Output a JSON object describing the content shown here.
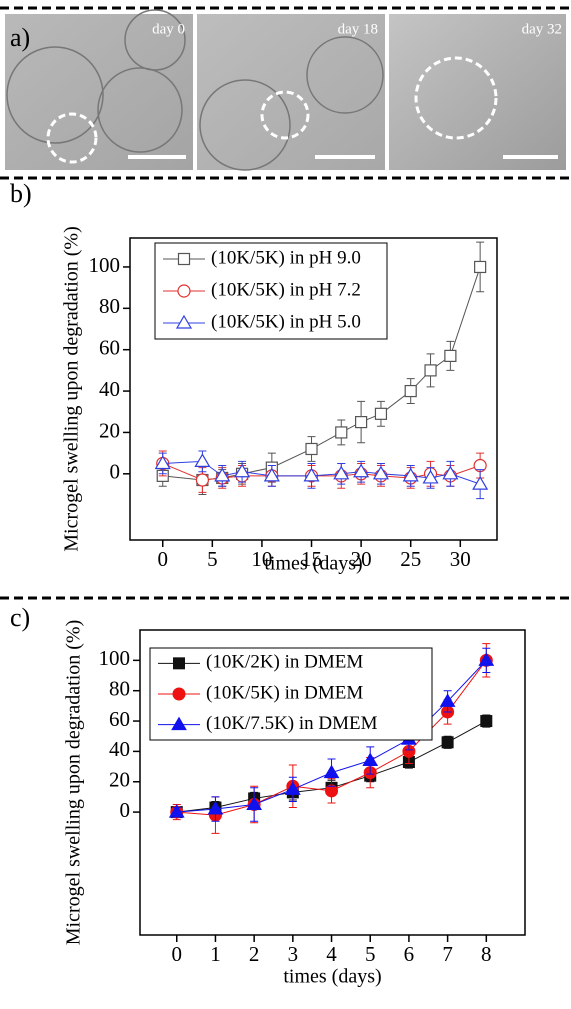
{
  "images": {
    "panel_label": "a)",
    "captions": [
      "day 0",
      "day 18",
      "day 32"
    ]
  },
  "chart_data": [
    {
      "type": "line",
      "panel_label": "b)",
      "x_label": "times (days)",
      "y_label": "Microgel swelling upon degradation (%)",
      "xlim": [
        -3.3,
        33.7
      ],
      "ylim": [
        -32,
        114
      ],
      "xticks": [
        0,
        5,
        10,
        15,
        20,
        25,
        30
      ],
      "yticks": [
        0,
        20,
        40,
        60,
        80,
        100
      ],
      "legend": "top-left",
      "series": [
        {
          "name": "(10K/5K) in pH 9.0",
          "color": "#555555",
          "marker": "open-square",
          "x": [
            0,
            4,
            6,
            8,
            11,
            15,
            18,
            20,
            22,
            25,
            27,
            29,
            32
          ],
          "values": [
            -1,
            -3,
            -2,
            0,
            3,
            12,
            20,
            25,
            29,
            40,
            50,
            57,
            100
          ],
          "errors": [
            5,
            7,
            4,
            5,
            7,
            6,
            6,
            10,
            6,
            6,
            8,
            7,
            12
          ]
        },
        {
          "name": "(10K/5K) in pH 7.2",
          "color": "#e03030",
          "marker": "open-circle",
          "x": [
            0,
            4,
            6,
            8,
            11,
            15,
            18,
            20,
            22,
            25,
            27,
            29,
            32
          ],
          "values": [
            5,
            -3,
            -2,
            -1,
            -1,
            -1,
            -1,
            0,
            -1,
            -2,
            0,
            -1,
            4
          ],
          "errors": [
            6,
            6,
            5,
            5,
            5,
            5,
            6,
            5,
            5,
            5,
            6,
            5,
            6
          ]
        },
        {
          "name": "(10K/5K) in pH 5.0",
          "color": "#3040e0",
          "marker": "open-triangle",
          "x": [
            0,
            4,
            6,
            8,
            11,
            15,
            18,
            20,
            22,
            25,
            27,
            29,
            32
          ],
          "values": [
            5,
            6,
            -1,
            1,
            -1,
            -1,
            0,
            1,
            0,
            -1,
            -2,
            0,
            -5
          ],
          "errors": [
            5,
            5,
            5,
            5,
            5,
            6,
            5,
            5,
            5,
            5,
            5,
            6,
            7
          ]
        }
      ]
    },
    {
      "type": "line",
      "panel_label": "c)",
      "x_label": "times (days)",
      "y_label": "Microgel swelling upon degradation (%)",
      "xlim": [
        -0.95,
        9
      ],
      "ylim": [
        -81,
        120
      ],
      "xticks": [
        0,
        1,
        2,
        3,
        4,
        5,
        6,
        7,
        8
      ],
      "yticks": [
        0,
        20,
        40,
        60,
        80,
        100
      ],
      "legend": "top-left",
      "series": [
        {
          "name": "(10K/2K) in DMEM",
          "color": "#111111",
          "marker": "filled-square",
          "x": [
            0,
            1,
            2,
            3,
            4,
            5,
            6,
            7,
            8
          ],
          "values": [
            0,
            3,
            9,
            13,
            16,
            24,
            33,
            46,
            60
          ],
          "errors": [
            3,
            4,
            4,
            5,
            5,
            4,
            4,
            4,
            4
          ]
        },
        {
          "name": "(10K/5K) in DMEM",
          "color": "#ee1111",
          "marker": "filled-circle",
          "x": [
            0,
            1,
            2,
            3,
            4,
            5,
            6,
            7,
            8
          ],
          "values": [
            0,
            -2,
            5,
            17,
            14,
            26,
            40,
            66,
            100
          ],
          "errors": [
            5,
            12,
            12,
            14,
            8,
            10,
            8,
            8,
            11
          ]
        },
        {
          "name": "(10K/7.5K) in DMEM",
          "color": "#1111ee",
          "marker": "filled-triangle",
          "x": [
            0,
            1,
            2,
            3,
            4,
            5,
            6,
            7,
            8
          ],
          "values": [
            0,
            2,
            5,
            15,
            26,
            34,
            48,
            73,
            100
          ],
          "errors": [
            3,
            8,
            11,
            8,
            9,
            9,
            7,
            7,
            8
          ]
        }
      ]
    }
  ]
}
